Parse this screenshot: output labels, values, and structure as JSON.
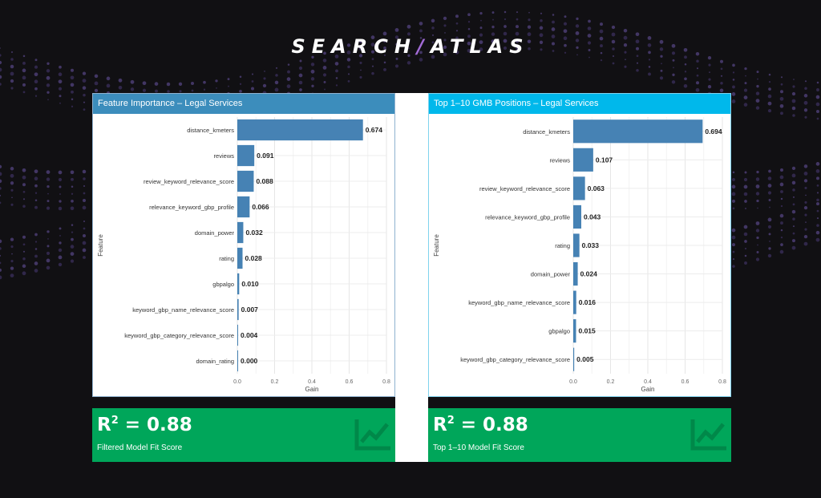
{
  "brand": {
    "part1": "SEARCH",
    "slash": "/",
    "part2": "ATLAS"
  },
  "colors": {
    "bar": "#4682b4",
    "score_bg": "#00a65a",
    "left_header": "#3c8dbc",
    "right_header": "#00b8eb"
  },
  "panels": [
    {
      "title": "Feature Importance – Legal Services"
    },
    {
      "title": "Top 1–10 GMB Positions – Legal Services"
    }
  ],
  "scores": [
    {
      "prefix": "R",
      "sup": "2",
      "value": " = 0.88",
      "label": "Filtered Model Fit Score",
      "icon": "line-chart-icon"
    },
    {
      "prefix": "R",
      "sup": "2",
      "value": " = 0.88",
      "label": "Top 1–10 Model Fit Score",
      "icon": "line-chart-icon"
    }
  ],
  "chart_data": [
    {
      "type": "bar",
      "orientation": "horizontal",
      "title": "Feature Importance – Legal Services",
      "xlabel": "Gain",
      "ylabel": "Feature",
      "xlim": [
        0,
        0.8
      ],
      "xticks": [
        "0.0",
        "0.2",
        "0.4",
        "0.6",
        "0.8"
      ],
      "grid": true,
      "categories": [
        "distance_kmeters",
        "reviews",
        "review_keyword_relevance_score",
        "relevance_keyword_gbp_profile",
        "domain_power",
        "rating",
        "gbpalgo",
        "keyword_gbp_name_relevance_score",
        "keyword_gbp_category_relevance_score",
        "domain_rating"
      ],
      "values": [
        0.674,
        0.091,
        0.088,
        0.066,
        0.032,
        0.028,
        0.01,
        0.007,
        0.004,
        0.0
      ],
      "value_labels": [
        "0.674",
        "0.091",
        "0.088",
        "0.066",
        "0.032",
        "0.028",
        "0.010",
        "0.007",
        "0.004",
        "0.000"
      ]
    },
    {
      "type": "bar",
      "orientation": "horizontal",
      "title": "Top 1–10 GMB Positions – Legal Services",
      "xlabel": "Gain",
      "ylabel": "Feature",
      "xlim": [
        0,
        0.8
      ],
      "xticks": [
        "0.0",
        "0.2",
        "0.4",
        "0.6",
        "0.8"
      ],
      "grid": true,
      "categories": [
        "distance_kmeters",
        "reviews",
        "review_keyword_relevance_score",
        "relevance_keyword_gbp_profile",
        "rating",
        "domain_power",
        "keyword_gbp_name_relevance_score",
        "gbpalgo",
        "keyword_gbp_category_relevance_score"
      ],
      "values": [
        0.694,
        0.107,
        0.063,
        0.043,
        0.033,
        0.024,
        0.016,
        0.015,
        0.005
      ],
      "value_labels": [
        "0.694",
        "0.107",
        "0.063",
        "0.043",
        "0.033",
        "0.024",
        "0.016",
        "0.015",
        "0.005"
      ]
    }
  ]
}
